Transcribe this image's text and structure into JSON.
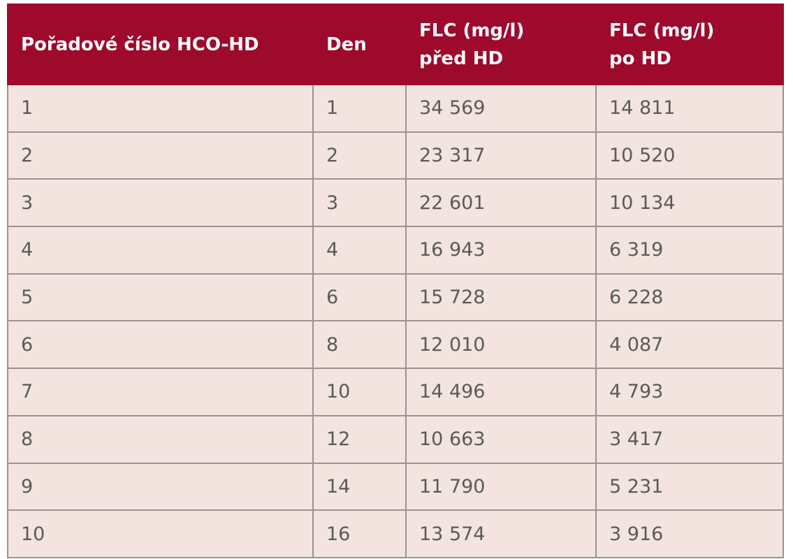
{
  "table": {
    "headers": [
      "Pořadové číslo HCO-HD",
      "Den",
      "FLC (mg/l)\npřed HD",
      "FLC (mg/l)\npo HD"
    ],
    "rows": [
      [
        "1",
        "1",
        "34 569",
        "14 811"
      ],
      [
        "2",
        "2",
        "23 317",
        "10 520"
      ],
      [
        "3",
        "3",
        "22 601",
        "10 134"
      ],
      [
        "4",
        "4",
        "16 943",
        "6 319"
      ],
      [
        "5",
        "6",
        "15 728",
        "6 228"
      ],
      [
        "6",
        "8",
        "12 010",
        "4 087"
      ],
      [
        "7",
        "10",
        "14 496",
        "4 793"
      ],
      [
        "8",
        "12",
        "10 663",
        "3 417"
      ],
      [
        "9",
        "14",
        "11 790",
        "5 231"
      ],
      [
        "10",
        "16",
        "13 574",
        "3 916"
      ]
    ]
  }
}
